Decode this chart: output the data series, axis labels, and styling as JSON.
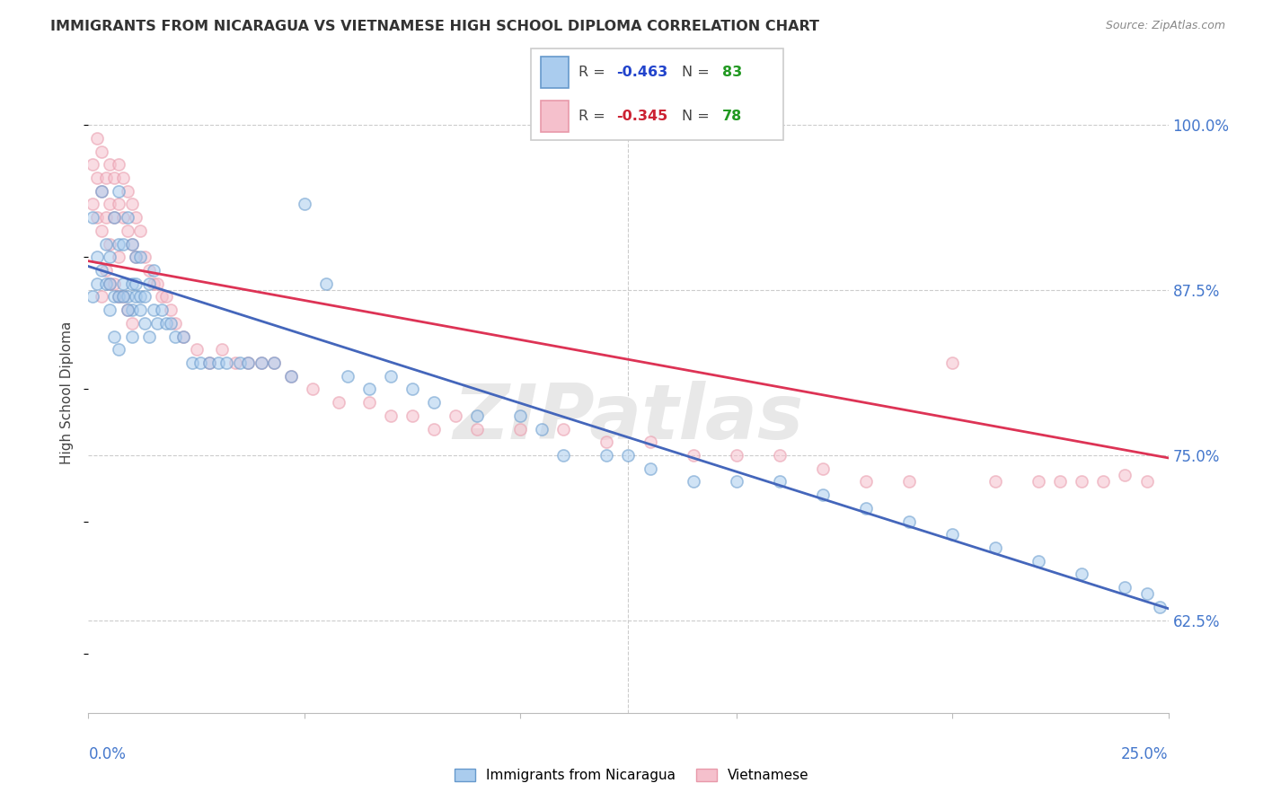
{
  "title": "IMMIGRANTS FROM NICARAGUA VS VIETNAMESE HIGH SCHOOL DIPLOMA CORRELATION CHART",
  "source": "Source: ZipAtlas.com",
  "ylabel": "High School Diploma",
  "ytick_labels": [
    "62.5%",
    "75.0%",
    "87.5%",
    "100.0%"
  ],
  "ytick_values": [
    0.625,
    0.75,
    0.875,
    1.0
  ],
  "xlim": [
    0.0,
    0.25
  ],
  "ylim": [
    0.555,
    1.04
  ],
  "blue_color": "#aaccee",
  "blue_edge": "#6699cc",
  "pink_color": "#f5c0cc",
  "pink_edge": "#e899aa",
  "blue_line_color": "#4466bb",
  "pink_line_color": "#dd3355",
  "legend_r_blue": "-0.463",
  "legend_n_blue": "83",
  "legend_r_pink": "-0.345",
  "legend_n_pink": "78",
  "legend_r_color_blue": "#2244cc",
  "legend_r_color_pink": "#cc2233",
  "legend_n_color": "#229922",
  "watermark": "ZIPatlas",
  "blue_trend_x0": 0.0,
  "blue_trend_y0": 0.893,
  "blue_trend_x1": 0.25,
  "blue_trend_y1": 0.634,
  "pink_trend_x0": 0.0,
  "pink_trend_y0": 0.897,
  "pink_trend_x1": 0.25,
  "pink_trend_y1": 0.748,
  "marker_size": 90,
  "marker_alpha": 0.55,
  "blue_x": [
    0.001,
    0.001,
    0.002,
    0.002,
    0.003,
    0.003,
    0.004,
    0.004,
    0.005,
    0.005,
    0.006,
    0.006,
    0.007,
    0.007,
    0.007,
    0.008,
    0.008,
    0.009,
    0.009,
    0.01,
    0.01,
    0.01,
    0.011,
    0.011,
    0.012,
    0.012,
    0.013,
    0.014,
    0.015,
    0.015,
    0.016,
    0.017,
    0.018,
    0.019,
    0.02,
    0.022,
    0.024,
    0.026,
    0.028,
    0.03,
    0.032,
    0.035,
    0.037,
    0.04,
    0.043,
    0.047,
    0.05,
    0.055,
    0.06,
    0.065,
    0.07,
    0.075,
    0.08,
    0.09,
    0.1,
    0.105,
    0.11,
    0.12,
    0.125,
    0.13,
    0.14,
    0.15,
    0.16,
    0.17,
    0.18,
    0.19,
    0.2,
    0.21,
    0.22,
    0.23,
    0.24,
    0.245,
    0.248,
    0.005,
    0.006,
    0.007,
    0.008,
    0.009,
    0.01,
    0.011,
    0.012,
    0.013,
    0.014
  ],
  "blue_y": [
    0.93,
    0.87,
    0.9,
    0.88,
    0.95,
    0.89,
    0.91,
    0.88,
    0.9,
    0.88,
    0.93,
    0.87,
    0.95,
    0.91,
    0.87,
    0.91,
    0.88,
    0.93,
    0.87,
    0.91,
    0.88,
    0.86,
    0.9,
    0.87,
    0.9,
    0.87,
    0.87,
    0.88,
    0.86,
    0.89,
    0.85,
    0.86,
    0.85,
    0.85,
    0.84,
    0.84,
    0.82,
    0.82,
    0.82,
    0.82,
    0.82,
    0.82,
    0.82,
    0.82,
    0.82,
    0.81,
    0.94,
    0.88,
    0.81,
    0.8,
    0.81,
    0.8,
    0.79,
    0.78,
    0.78,
    0.77,
    0.75,
    0.75,
    0.75,
    0.74,
    0.73,
    0.73,
    0.73,
    0.72,
    0.71,
    0.7,
    0.69,
    0.68,
    0.67,
    0.66,
    0.65,
    0.645,
    0.635,
    0.86,
    0.84,
    0.83,
    0.87,
    0.86,
    0.84,
    0.88,
    0.86,
    0.85,
    0.84
  ],
  "pink_x": [
    0.001,
    0.001,
    0.002,
    0.002,
    0.002,
    0.003,
    0.003,
    0.003,
    0.004,
    0.004,
    0.005,
    0.005,
    0.005,
    0.006,
    0.006,
    0.007,
    0.007,
    0.007,
    0.008,
    0.008,
    0.009,
    0.009,
    0.01,
    0.01,
    0.011,
    0.011,
    0.012,
    0.013,
    0.014,
    0.015,
    0.016,
    0.017,
    0.018,
    0.019,
    0.02,
    0.022,
    0.025,
    0.028,
    0.031,
    0.034,
    0.037,
    0.04,
    0.043,
    0.047,
    0.052,
    0.058,
    0.065,
    0.07,
    0.075,
    0.08,
    0.085,
    0.09,
    0.1,
    0.11,
    0.12,
    0.13,
    0.14,
    0.15,
    0.16,
    0.17,
    0.18,
    0.19,
    0.2,
    0.21,
    0.22,
    0.225,
    0.23,
    0.235,
    0.24,
    0.245,
    0.003,
    0.004,
    0.005,
    0.006,
    0.007,
    0.008,
    0.009,
    0.01
  ],
  "pink_y": [
    0.97,
    0.94,
    0.99,
    0.96,
    0.93,
    0.98,
    0.95,
    0.92,
    0.96,
    0.93,
    0.97,
    0.94,
    0.91,
    0.96,
    0.93,
    0.97,
    0.94,
    0.9,
    0.96,
    0.93,
    0.95,
    0.92,
    0.94,
    0.91,
    0.93,
    0.9,
    0.92,
    0.9,
    0.89,
    0.88,
    0.88,
    0.87,
    0.87,
    0.86,
    0.85,
    0.84,
    0.83,
    0.82,
    0.83,
    0.82,
    0.82,
    0.82,
    0.82,
    0.81,
    0.8,
    0.79,
    0.79,
    0.78,
    0.78,
    0.77,
    0.78,
    0.77,
    0.77,
    0.77,
    0.76,
    0.76,
    0.75,
    0.75,
    0.75,
    0.74,
    0.73,
    0.73,
    0.82,
    0.73,
    0.73,
    0.73,
    0.73,
    0.73,
    0.735,
    0.73,
    0.87,
    0.89,
    0.88,
    0.88,
    0.87,
    0.87,
    0.86,
    0.85
  ]
}
